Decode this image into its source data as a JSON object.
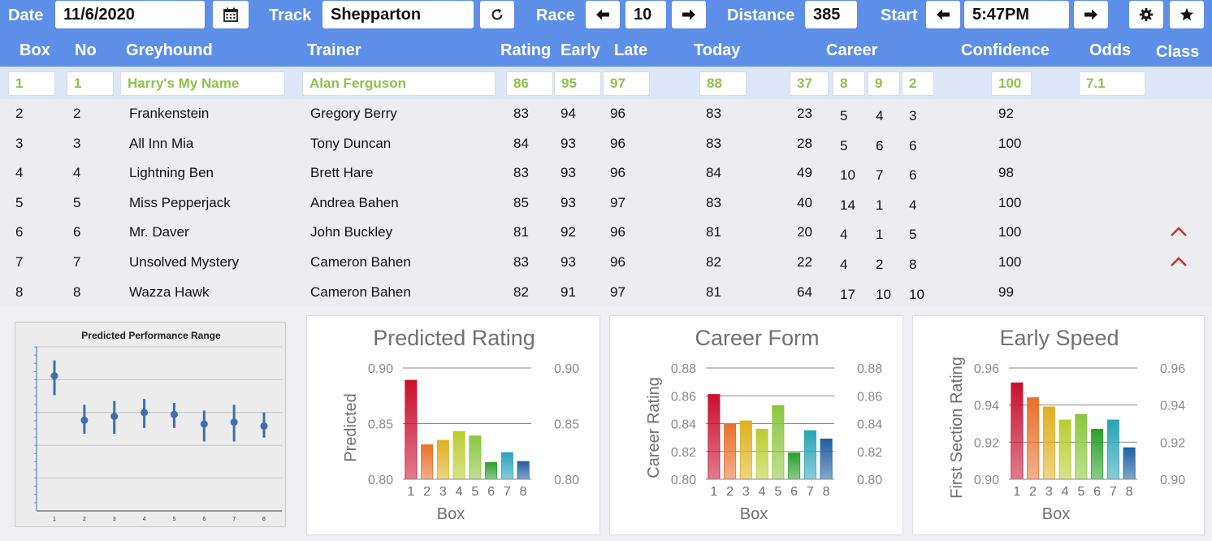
{
  "toolbar": {
    "date_label": "Date",
    "date_value": "11/6/2020",
    "calendar_icon": "calendar-icon",
    "track_label": "Track",
    "track_value": "Shepparton",
    "refresh_icon": "refresh-icon",
    "race_label": "Race",
    "race_value": "10",
    "distance_label": "Distance",
    "distance_value": "385",
    "start_label": "Start",
    "start_value": "5:47PM",
    "settings_icon": "gear-icon",
    "favorite_icon": "star-icon"
  },
  "table": {
    "headers": {
      "box": "Box",
      "no": "No",
      "greyhound": "Greyhound",
      "trainer": "Trainer",
      "rating": "Rating",
      "early": "Early",
      "late": "Late",
      "today": "Today",
      "career": "Career",
      "confidence": "Confidence",
      "odds": "Odds",
      "class": "Class"
    },
    "selected": {
      "box": "1",
      "no": "1",
      "greyhound": "Harry's My Name",
      "trainer": "Alan Ferguson",
      "rating": "86",
      "early": "95",
      "late": "97",
      "today": "88",
      "career": [
        "37",
        "8",
        "9",
        "2"
      ],
      "confidence": "100",
      "odds": "7.1"
    },
    "rows": [
      {
        "box": "2",
        "no": "2",
        "greyhound": "Frankenstein",
        "trainer": "Gregory Berry",
        "rating": "83",
        "early": "94",
        "late": "96",
        "today": "83",
        "career": [
          "23",
          "5",
          "4",
          "3"
        ],
        "confidence": "92",
        "class_up": false
      },
      {
        "box": "3",
        "no": "3",
        "greyhound": "All Inn Mia",
        "trainer": "Tony Duncan",
        "rating": "84",
        "early": "93",
        "late": "96",
        "today": "83",
        "career": [
          "28",
          "5",
          "6",
          "6"
        ],
        "confidence": "100",
        "class_up": false
      },
      {
        "box": "4",
        "no": "4",
        "greyhound": "Lightning Ben",
        "trainer": "Brett Hare",
        "rating": "83",
        "early": "93",
        "late": "96",
        "today": "84",
        "career": [
          "49",
          "10",
          "7",
          "6"
        ],
        "confidence": "98",
        "class_up": false
      },
      {
        "box": "5",
        "no": "5",
        "greyhound": "Miss Pepperjack",
        "trainer": "Andrea Bahen",
        "rating": "85",
        "early": "93",
        "late": "97",
        "today": "83",
        "career": [
          "40",
          "14",
          "1",
          "4"
        ],
        "confidence": "100",
        "class_up": false
      },
      {
        "box": "6",
        "no": "6",
        "greyhound": "Mr. Daver",
        "trainer": "John Buckley",
        "rating": "81",
        "early": "92",
        "late": "96",
        "today": "81",
        "career": [
          "20",
          "4",
          "1",
          "5"
        ],
        "confidence": "100",
        "class_up": true
      },
      {
        "box": "7",
        "no": "7",
        "greyhound": "Unsolved Mystery",
        "trainer": "Cameron Bahen",
        "rating": "83",
        "early": "93",
        "late": "96",
        "today": "82",
        "career": [
          "22",
          "4",
          "2",
          "8"
        ],
        "confidence": "100",
        "class_up": true
      },
      {
        "box": "8",
        "no": "8",
        "greyhound": "Wazza Hawk",
        "trainer": "Cameron Bahen",
        "rating": "82",
        "early": "91",
        "late": "97",
        "today": "81",
        "career": [
          "64",
          "17",
          "10",
          "10"
        ],
        "confidence": "99",
        "class_up": false
      }
    ]
  },
  "colors": {
    "bar": "#5d8fe8",
    "selected_text": "#8bc34a",
    "selected_row": "#dde7f8",
    "class_up": "#d0312d",
    "box_palette": [
      "#c8102e",
      "#e8702a",
      "#e0b020",
      "#b9cc2e",
      "#8cc63f",
      "#2ca02c",
      "#2aa3b8",
      "#1f5fa0"
    ]
  },
  "chart_data": [
    {
      "type": "scatter",
      "title": "Predicted Performance Range",
      "x": [
        "1",
        "2",
        "3",
        "4",
        "5",
        "6",
        "7",
        "8"
      ],
      "series": [
        {
          "center": [
            0.7,
            0.47,
            0.49,
            0.51,
            0.5,
            0.45,
            0.46,
            0.44
          ],
          "low": [
            0.6,
            0.4,
            0.4,
            0.43,
            0.43,
            0.36,
            0.36,
            0.38
          ],
          "high": [
            0.78,
            0.55,
            0.57,
            0.58,
            0.56,
            0.52,
            0.55,
            0.51
          ]
        }
      ],
      "ylim": [
        0,
        0.85
      ],
      "grid": true
    },
    {
      "type": "bar",
      "title": "Predicted Rating",
      "xlabel": "Box",
      "ylabel": "Predicted",
      "categories": [
        "1",
        "2",
        "3",
        "4",
        "5",
        "6",
        "7",
        "8"
      ],
      "values": [
        0.889,
        0.831,
        0.835,
        0.843,
        0.839,
        0.815,
        0.824,
        0.816
      ],
      "ylim": [
        0.8,
        0.9
      ],
      "yticks": [
        "0.80",
        "0.85",
        "0.90"
      ]
    },
    {
      "type": "bar",
      "title": "Career Form",
      "xlabel": "Box",
      "ylabel": "Career Rating",
      "categories": [
        "1",
        "2",
        "3",
        "4",
        "5",
        "6",
        "7",
        "8"
      ],
      "values": [
        0.861,
        0.84,
        0.842,
        0.836,
        0.853,
        0.819,
        0.835,
        0.829
      ],
      "ylim": [
        0.8,
        0.88
      ],
      "yticks": [
        "0.80",
        "0.82",
        "0.84",
        "0.86",
        "0.88"
      ]
    },
    {
      "type": "bar",
      "title": "Early Speed",
      "xlabel": "Box",
      "ylabel": "First Section Rating",
      "categories": [
        "1",
        "2",
        "3",
        "4",
        "5",
        "6",
        "7",
        "8"
      ],
      "values": [
        0.952,
        0.944,
        0.939,
        0.932,
        0.935,
        0.927,
        0.932,
        0.917
      ],
      "ylim": [
        0.9,
        0.96
      ],
      "yticks": [
        "0.90",
        "0.92",
        "0.94",
        "0.96"
      ]
    }
  ]
}
